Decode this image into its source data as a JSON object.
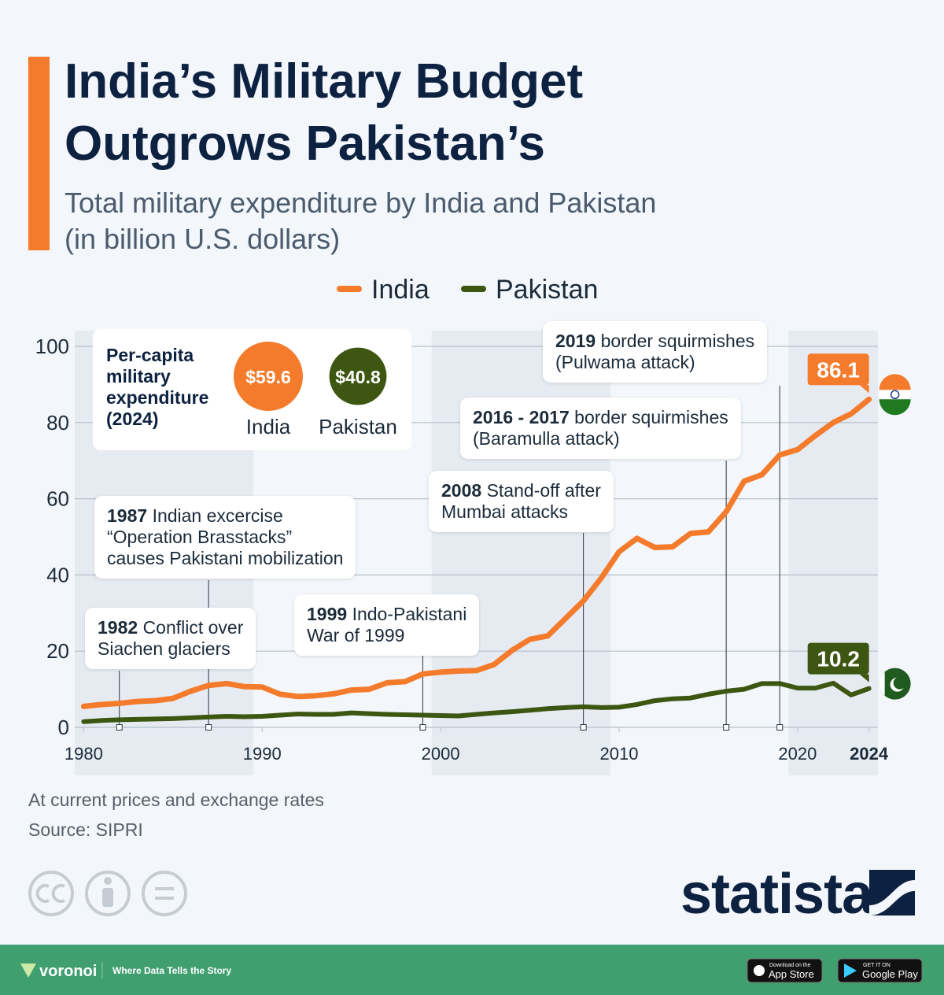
{
  "header": {
    "title": [
      "India’s Military Budget",
      "Outgrows Pakistan’s"
    ],
    "subtitle": [
      "Total military expenditure by India and Pakistan",
      "(in billion U.S. dollars)"
    ]
  },
  "chart_data": {
    "type": "line",
    "x": [
      1980,
      1981,
      1982,
      1983,
      1984,
      1985,
      1986,
      1987,
      1988,
      1989,
      1990,
      1991,
      1992,
      1993,
      1994,
      1995,
      1996,
      1997,
      1998,
      1999,
      2000,
      2001,
      2002,
      2003,
      2004,
      2005,
      2006,
      2007,
      2008,
      2009,
      2010,
      2011,
      2012,
      2013,
      2014,
      2015,
      2016,
      2017,
      2018,
      2019,
      2020,
      2021,
      2022,
      2023,
      2024
    ],
    "series": [
      {
        "name": "India",
        "color": "#f47b2b",
        "values": [
          5.5,
          6.0,
          6.3,
          6.8,
          7.0,
          7.6,
          9.5,
          11.0,
          11.5,
          10.7,
          10.6,
          8.7,
          8.1,
          8.3,
          8.8,
          9.8,
          10.0,
          11.7,
          12.0,
          14.0,
          14.5,
          14.8,
          14.9,
          16.5,
          20.2,
          23.1,
          24.0,
          28.6,
          33.2,
          39.2,
          46.1,
          49.6,
          47.2,
          47.4,
          50.9,
          51.3,
          56.6,
          64.6,
          66.3,
          71.5,
          72.9,
          76.6,
          80.0,
          82.3,
          86.1
        ]
      },
      {
        "name": "Pakistan",
        "color": "#3d5611",
        "values": [
          1.5,
          1.8,
          2.0,
          2.1,
          2.2,
          2.3,
          2.5,
          2.7,
          2.9,
          2.8,
          2.9,
          3.2,
          3.5,
          3.4,
          3.4,
          3.8,
          3.6,
          3.4,
          3.3,
          3.2,
          3.1,
          3.0,
          3.4,
          3.8,
          4.1,
          4.5,
          4.9,
          5.2,
          5.4,
          5.2,
          5.3,
          6.0,
          7.0,
          7.5,
          7.7,
          8.7,
          9.5,
          10.0,
          11.5,
          11.5,
          10.3,
          10.3,
          11.6,
          8.5,
          10.2
        ]
      }
    ],
    "xlim": [
      1979.5,
      2024.5
    ],
    "ylim": [
      0,
      100
    ],
    "xticks": [
      1980,
      1990,
      2000,
      2010,
      2020,
      2024
    ],
    "yticks": [
      0,
      20,
      40,
      60,
      80,
      100
    ],
    "grid": true,
    "bold_last_xtick": true,
    "annotations": [
      {
        "label": "1982",
        "x": 1982,
        "lines": [
          "Conflict over",
          "Siachen glaciers"
        ]
      },
      {
        "label": "1987",
        "x": 1987,
        "lines": [
          "Indian excercise",
          "“Operation Brasstacks”",
          "causes Pakistani mobilization"
        ]
      },
      {
        "label": "1999",
        "x": 1999,
        "lines": [
          "Indo-Pakistani",
          "War of 1999"
        ]
      },
      {
        "label": "2008",
        "x": 2008,
        "lines": [
          "Stand-off after",
          "Mumbai attacks"
        ]
      },
      {
        "label": "2016 - 2017",
        "x": 2016,
        "lines": [
          "border squirmishes",
          "(Baramulla attack)"
        ]
      },
      {
        "label": "2019",
        "x": 2019,
        "lines": [
          "border squirmishes",
          "(Pulwama attack)"
        ]
      }
    ],
    "per_capita": {
      "title": [
        "Per-capita",
        "military",
        "expenditure",
        "(2024)"
      ],
      "categories": [
        "India",
        "Pakistan"
      ],
      "values": [
        59.6,
        40.8
      ],
      "value_labels": [
        "$59.6",
        "$40.8"
      ],
      "colors": [
        "#f47b2b",
        "#3d5611"
      ]
    }
  },
  "notes": [
    "At current prices and exchange rates",
    "Source: SIPRI"
  ],
  "branding": {
    "logo": "statista",
    "footer": {
      "brand": "voronoi",
      "tagline": "Where Data Tells the Story",
      "app_store": [
        "Download on the",
        "App Store"
      ],
      "google_play": [
        "GET IT ON",
        "Google Play"
      ]
    }
  }
}
